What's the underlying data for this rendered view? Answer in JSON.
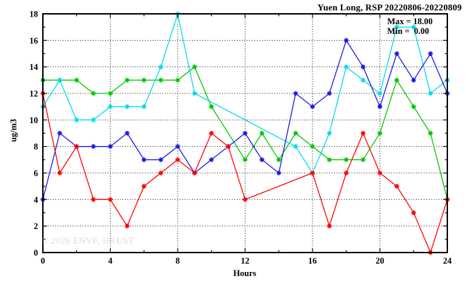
{
  "title": "Yuen Long, RSP 20220806-20220809",
  "legend": {
    "max_label": "Max = 18.00",
    "min_label": "Min =  0.00"
  },
  "watermark": "© 2026 ENVF, HKUST",
  "chart_data": {
    "type": "line",
    "title": "Yuen Long, RSP 20220806-20220809",
    "xlabel": "Hours",
    "ylabel": "ug/m3",
    "xlim": [
      0,
      24
    ],
    "ylim": [
      0,
      18
    ],
    "x_major_ticks": [
      0,
      4,
      8,
      12,
      16,
      20,
      24
    ],
    "x_minor_step": 2,
    "y_major_ticks": [
      0,
      2,
      4,
      6,
      8,
      10,
      12,
      14,
      16,
      18
    ],
    "y_minor_step": 1,
    "grid": "dotted",
    "grid_color": "#000000",
    "frame_color": "#000000",
    "max": 18.0,
    "min": 0.0,
    "x": [
      0,
      1,
      2,
      3,
      4,
      5,
      6,
      7,
      8,
      9,
      10,
      11,
      12,
      13,
      14,
      15,
      16,
      17,
      18,
      19,
      20,
      21,
      22,
      23,
      24
    ],
    "series": [
      {
        "name": "green",
        "color": "#00c800",
        "values": [
          13,
          13,
          13,
          12,
          12,
          13,
          13,
          13,
          13,
          14,
          11,
          null,
          7,
          9,
          7,
          9,
          8,
          7,
          7,
          7,
          9,
          13,
          11,
          9,
          4
        ]
      },
      {
        "name": "cyan",
        "color": "#00dce8",
        "values": [
          11,
          13,
          10,
          10,
          11,
          11,
          11,
          14,
          18,
          12,
          null,
          null,
          null,
          null,
          null,
          8,
          6,
          9,
          14,
          13,
          12,
          17,
          17,
          12,
          13
        ]
      },
      {
        "name": "blue",
        "color": "#1a1ae0",
        "values": [
          4,
          9,
          8,
          8,
          8,
          9,
          7,
          7,
          8,
          6,
          7,
          8,
          9,
          7,
          6,
          12,
          11,
          12,
          16,
          14,
          11,
          15,
          13,
          15,
          12
        ]
      },
      {
        "name": "red",
        "color": "#ff0000",
        "values": [
          12,
          6,
          8,
          4,
          4,
          2,
          5,
          6,
          7,
          6,
          9,
          8,
          4,
          null,
          null,
          null,
          6,
          2,
          6,
          9,
          6,
          5,
          3,
          0,
          4
        ]
      }
    ]
  }
}
